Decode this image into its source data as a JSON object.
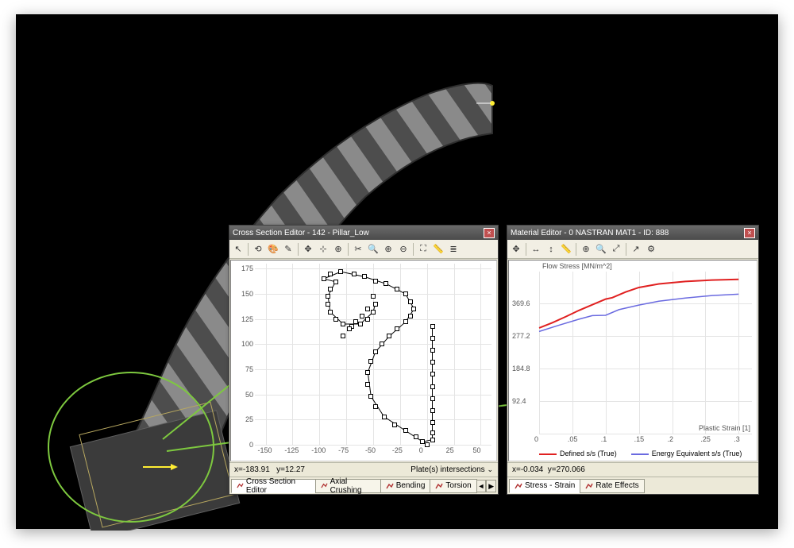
{
  "window_cross_section": {
    "title": "Cross Section Editor - 142 - Pillar_Low",
    "toolbar_icons": [
      "select-arrow",
      "rotate-view",
      "palette",
      "pencil",
      "pan-cross",
      "snap",
      "snap2",
      "trim",
      "magnify",
      "zoom-plus",
      "zoom-minus",
      "fit",
      "ruler",
      "puzzle"
    ],
    "status_x_label": "x=-183.91",
    "status_y_label": "y=12.27",
    "status_right": "Plate(s) intersections",
    "tabs": [
      "Cross Section Editor",
      "Axial Crushing",
      "Bending",
      "Torsion"
    ],
    "active_tab_index": 0,
    "plot": {
      "type": "scatter",
      "xlim": [
        -160,
        60
      ],
      "ylim": [
        0,
        180
      ],
      "xticks": [
        -150,
        -125,
        -100,
        -75,
        -50,
        -25,
        0,
        25,
        50
      ],
      "yticks": [
        0,
        25,
        50,
        75,
        100,
        125,
        150,
        175
      ],
      "grid_color": "#e4e4e4",
      "point_color": "#000000",
      "point_fill": "#ffffff",
      "points": [
        [
          -96,
          165
        ],
        [
          -90,
          170
        ],
        [
          -80,
          172
        ],
        [
          -68,
          170
        ],
        [
          -58,
          167
        ],
        [
          -48,
          163
        ],
        [
          -38,
          160
        ],
        [
          -28,
          155
        ],
        [
          -20,
          150
        ],
        [
          -15,
          142
        ],
        [
          -12,
          135
        ],
        [
          -15,
          128
        ],
        [
          -20,
          122
        ],
        [
          -28,
          115
        ],
        [
          -35,
          108
        ],
        [
          -42,
          100
        ],
        [
          -48,
          92
        ],
        [
          -52,
          83
        ],
        [
          -55,
          72
        ],
        [
          -55,
          60
        ],
        [
          -52,
          48
        ],
        [
          -48,
          38
        ],
        [
          -40,
          28
        ],
        [
          -30,
          20
        ],
        [
          -20,
          14
        ],
        [
          -10,
          8
        ],
        [
          -4,
          3
        ],
        [
          0,
          0
        ],
        [
          5,
          5
        ],
        [
          5,
          12
        ],
        [
          5,
          22
        ],
        [
          5,
          34
        ],
        [
          5,
          46
        ],
        [
          5,
          58
        ],
        [
          5,
          70
        ],
        [
          5,
          82
        ],
        [
          5,
          94
        ],
        [
          5,
          106
        ],
        [
          5,
          118
        ],
        [
          -85,
          162
        ],
        [
          -90,
          155
        ],
        [
          -92,
          148
        ],
        [
          -92,
          140
        ],
        [
          -90,
          132
        ],
        [
          -85,
          125
        ],
        [
          -78,
          120
        ],
        [
          -70,
          118
        ],
        [
          -62,
          120
        ],
        [
          -55,
          125
        ],
        [
          -50,
          132
        ],
        [
          -48,
          140
        ],
        [
          -50,
          148
        ],
        [
          -55,
          135
        ],
        [
          -60,
          128
        ],
        [
          -66,
          122
        ],
        [
          -72,
          115
        ],
        [
          -78,
          108
        ]
      ],
      "segments": [
        [
          [
            -96,
            165
          ],
          [
            -85,
            162
          ]
        ],
        [
          [
            -85,
            162
          ],
          [
            -92,
            148
          ]
        ],
        [
          [
            -92,
            148
          ],
          [
            -90,
            132
          ]
        ],
        [
          [
            -90,
            132
          ],
          [
            -78,
            120
          ]
        ],
        [
          [
            -78,
            120
          ],
          [
            -62,
            120
          ]
        ],
        [
          [
            -62,
            120
          ],
          [
            -50,
            132
          ]
        ],
        [
          [
            -50,
            132
          ],
          [
            -48,
            140
          ]
        ],
        [
          [
            -48,
            92
          ],
          [
            -55,
            72
          ]
        ],
        [
          [
            -55,
            72
          ],
          [
            -52,
            48
          ]
        ],
        [
          [
            -52,
            48
          ],
          [
            -40,
            28
          ]
        ],
        [
          [
            -40,
            28
          ],
          [
            -20,
            14
          ]
        ],
        [
          [
            -20,
            14
          ],
          [
            -4,
            3
          ]
        ],
        [
          [
            -4,
            3
          ],
          [
            5,
            5
          ]
        ],
        [
          [
            5,
            5
          ],
          [
            5,
            118
          ]
        ],
        [
          [
            -96,
            165
          ],
          [
            -80,
            172
          ]
        ],
        [
          [
            -80,
            172
          ],
          [
            -58,
            167
          ]
        ],
        [
          [
            -58,
            167
          ],
          [
            -38,
            160
          ]
        ],
        [
          [
            -38,
            160
          ],
          [
            -20,
            150
          ]
        ],
        [
          [
            -20,
            150
          ],
          [
            -12,
            135
          ]
        ],
        [
          [
            -12,
            135
          ],
          [
            -20,
            122
          ]
        ],
        [
          [
            -20,
            122
          ],
          [
            -35,
            108
          ]
        ],
        [
          [
            -35,
            108
          ],
          [
            -48,
            92
          ]
        ]
      ]
    }
  },
  "window_material": {
    "title": "Material Editor - 0 NASTRAN MAT1 - ID: 888",
    "toolbar_icons": [
      "pan-cross",
      "stretch-h",
      "stretch-v",
      "ruler",
      "zoom-plus",
      "magnify",
      "zoom-wide",
      "trend",
      "settings"
    ],
    "chart": {
      "title": "Flow Stress [MN/m^2]",
      "xlabel": "Plastic Strain [1]",
      "xlim": [
        0,
        0.32
      ],
      "ylim": [
        0,
        460
      ],
      "xticks": [
        0,
        0.05,
        0.1,
        0.15,
        0.2,
        0.25,
        0.3
      ],
      "xtick_labels": [
        "0",
        ".05",
        ".1",
        ".15",
        ".2",
        ".25",
        ".3"
      ],
      "yticks": [
        0,
        92.4,
        184.8,
        277.2,
        369.6
      ],
      "grid_color": "#e4e4e4",
      "series": [
        {
          "name": "Defined s/s (True)",
          "color": "#e02020",
          "width": 2,
          "points": [
            [
              0,
              300
            ],
            [
              0.02,
              315
            ],
            [
              0.04,
              332
            ],
            [
              0.06,
              350
            ],
            [
              0.08,
              366
            ],
            [
              0.1,
              382
            ],
            [
              0.11,
              386
            ],
            [
              0.13,
              402
            ],
            [
              0.15,
              415
            ],
            [
              0.18,
              425
            ],
            [
              0.22,
              432
            ],
            [
              0.26,
              436
            ],
            [
              0.3,
              438
            ]
          ]
        },
        {
          "name": "Energy Equivalent s/s (True)",
          "color": "#6a6ae0",
          "width": 1.5,
          "points": [
            [
              0,
              290
            ],
            [
              0.03,
              308
            ],
            [
              0.06,
              325
            ],
            [
              0.08,
              335
            ],
            [
              0.1,
              336
            ],
            [
              0.12,
              352
            ],
            [
              0.15,
              365
            ],
            [
              0.18,
              376
            ],
            [
              0.22,
              385
            ],
            [
              0.26,
              392
            ],
            [
              0.3,
              396
            ]
          ]
        }
      ]
    },
    "legend_items": [
      "Defined s/s (True)",
      "Energy Equivalent s/s (True)"
    ],
    "status_x": "x=-0.034",
    "status_y": "y=270.066",
    "tabs": [
      "Stress - Strain",
      "Rate Effects"
    ],
    "active_tab_index": 0
  },
  "annotation": {
    "circle_color": "#7ec93f",
    "arrow_color": "#7ec93f"
  }
}
